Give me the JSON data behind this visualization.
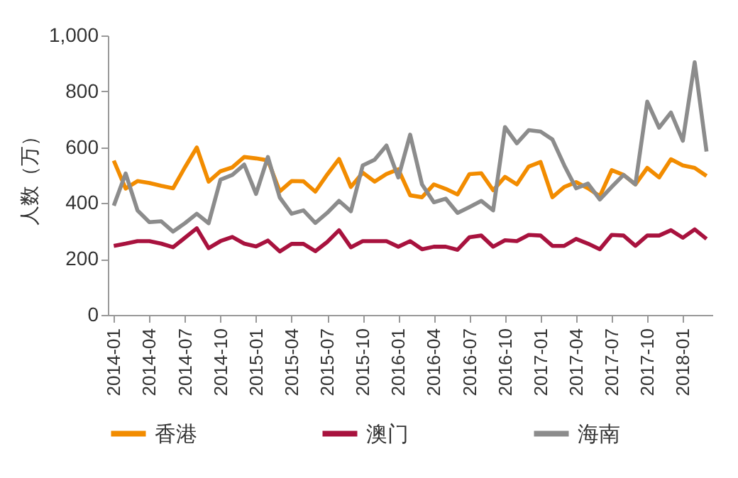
{
  "chart_data": {
    "type": "line",
    "ylabel": "人数（万）",
    "categories": [
      "2014-01",
      null,
      null,
      "2014-04",
      null,
      null,
      "2014-07",
      null,
      null,
      "2014-10",
      null,
      null,
      "2015-01",
      null,
      null,
      "2015-04",
      null,
      null,
      "2015-07",
      null,
      null,
      "2015-10",
      null,
      null,
      "2016-01",
      null,
      null,
      "2016-04",
      null,
      null,
      "2016-07",
      null,
      null,
      "2016-10",
      null,
      null,
      "2017-01",
      null,
      null,
      "2017-04",
      null,
      null,
      "2017-07",
      null,
      null,
      "2017-10",
      null,
      null,
      "2018-01",
      null,
      null
    ],
    "series": [
      {
        "name": "香港",
        "color": "#f28c00",
        "values": [
          552,
          452,
          479,
          472,
          462,
          453,
          528,
          599,
          477,
          514,
          528,
          565,
          560,
          553,
          442,
          479,
          478,
          441,
          502,
          558,
          458,
          509,
          477,
          504,
          521,
          428,
          421,
          467,
          451,
          431,
          504,
          507,
          446,
          494,
          467,
          531,
          547,
          421,
          458,
          475,
          453,
          425,
          518,
          501,
          467,
          526,
          492,
          557,
          535,
          526,
          497
        ]
      },
      {
        "name": "澳门",
        "color": "#a8123e",
        "values": [
          247,
          255,
          264,
          264,
          255,
          242,
          276,
          310,
          239,
          264,
          279,
          255,
          245,
          266,
          227,
          254,
          254,
          228,
          261,
          303,
          242,
          264,
          264,
          264,
          244,
          264,
          235,
          244,
          244,
          233,
          278,
          284,
          244,
          267,
          264,
          286,
          284,
          247,
          247,
          272,
          255,
          235,
          286,
          284,
          247,
          284,
          284,
          303,
          276,
          306,
          272
        ]
      },
      {
        "name": "海南",
        "color": "#8c8c8c",
        "values": [
          391,
          506,
          374,
          332,
          335,
          298,
          328,
          362,
          328,
          484,
          501,
          538,
          433,
          565,
          420,
          362,
          374,
          329,
          365,
          408,
          371,
          535,
          555,
          606,
          492,
          645,
          467,
          403,
          416,
          365,
          386,
          408,
          374,
          672,
          614,
          661,
          656,
          628,
          535,
          453,
          470,
          413,
          458,
          501,
          467,
          763,
          670,
          724,
          623,
          904,
          585
        ]
      }
    ],
    "ylim": [
      0,
      1000
    ],
    "yticks": [
      0,
      200,
      400,
      600,
      800,
      {
        "value": 1000,
        "label": "1,000"
      }
    ],
    "grid": false,
    "legend": "bottom",
    "marker": "none",
    "line_style": "solid"
  }
}
